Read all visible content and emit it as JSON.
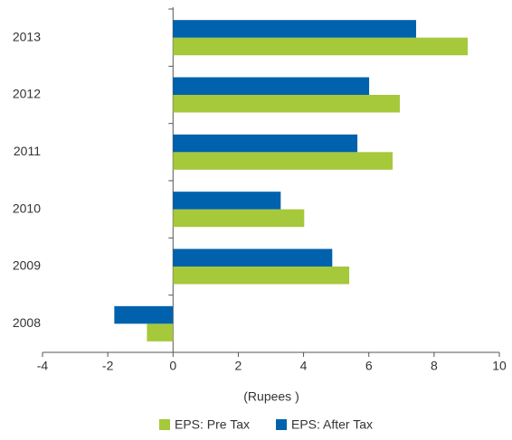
{
  "chart_data": {
    "type": "hbar",
    "categories": [
      "2013",
      "2012",
      "2011",
      "2010",
      "2009",
      "2008"
    ],
    "series": [
      {
        "name": "EPS: Pre Tax",
        "color": "#a6c83b",
        "values": [
          9.03,
          6.95,
          6.73,
          4.02,
          5.4,
          -0.8
        ]
      },
      {
        "name": "EPS: After Tax",
        "color": "#0062ad",
        "values": [
          7.45,
          6.01,
          5.65,
          3.3,
          4.88,
          -1.8
        ]
      }
    ],
    "xlabel": "(Rupees )",
    "xlim": [
      -4,
      10
    ],
    "xticks": [
      -4,
      -2,
      0,
      2,
      4,
      6,
      8,
      10
    ],
    "legend": "bottom"
  }
}
